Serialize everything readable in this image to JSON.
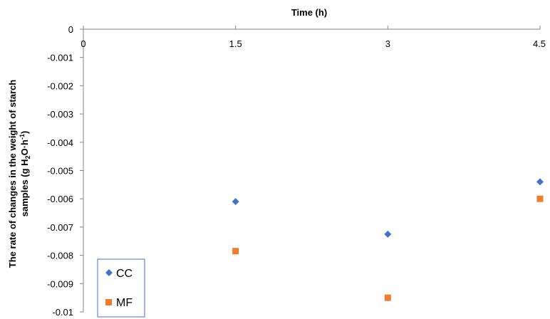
{
  "chart_data": {
    "type": "scatter",
    "xlabel": "Time (h)",
    "ylabel_line1": "The rate of changes  in the weight of starch",
    "ylabel_line2_prefix": "samples (g H",
    "ylabel_line2_sub": "2",
    "ylabel_line2_mid": "O·h",
    "ylabel_line2_sup": "-1",
    "ylabel_line2_suffix": ")",
    "x_ticks": [
      "0",
      "1.5",
      "3",
      "4.5"
    ],
    "x_tick_values": [
      0,
      1.5,
      3,
      4.5
    ],
    "xlim": [
      0,
      4.5
    ],
    "y_ticks": [
      "0",
      "-0.001",
      "-0.002",
      "-0.003",
      "-0.004",
      "-0.005",
      "-0.006",
      "-0.007",
      "-0.008",
      "-0.009",
      "-0.01"
    ],
    "y_tick_values": [
      0,
      -0.001,
      -0.002,
      -0.003,
      -0.004,
      -0.005,
      -0.006,
      -0.007,
      -0.008,
      -0.009,
      -0.01
    ],
    "ylim": [
      -0.01,
      0
    ],
    "x_axis_position": "top",
    "grid": false,
    "legend_position": "bottom-left",
    "series": [
      {
        "name": "CC",
        "marker": "diamond",
        "color": "#4472C4",
        "x": [
          1.5,
          3,
          4.5
        ],
        "y": [
          -0.0061,
          -0.00725,
          -0.0054
        ]
      },
      {
        "name": "MF",
        "marker": "square",
        "color": "#ED7D31",
        "x": [
          1.5,
          3,
          4.5
        ],
        "y": [
          -0.00785,
          -0.0095,
          -0.006
        ]
      }
    ]
  }
}
